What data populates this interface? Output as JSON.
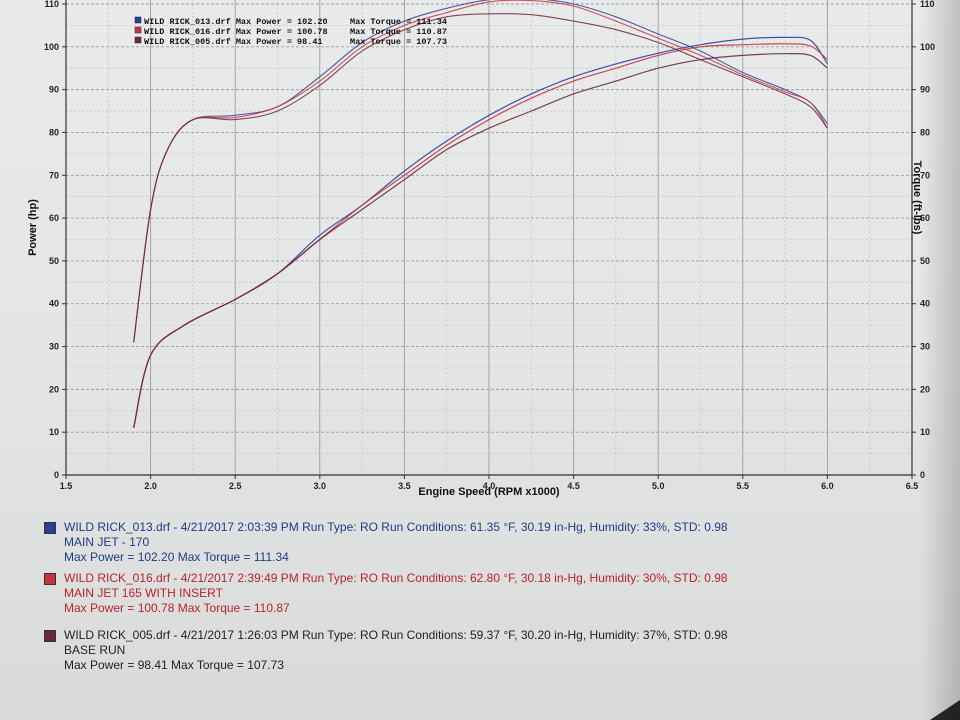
{
  "chart_data": {
    "type": "line",
    "xlabel": "Engine Speed (RPM x1000)",
    "ylabel": "Power (hp)",
    "y2label": "Torque (ft-lbs)",
    "xlim": [
      1.5,
      6.5
    ],
    "ylim": [
      0,
      110
    ],
    "y2lim": [
      0,
      110
    ],
    "x_ticks": [
      "1.5",
      "2.0",
      "2.5",
      "3.0",
      "3.5",
      "4.0",
      "4.5",
      "5.0",
      "5.5",
      "6.0",
      "6.5"
    ],
    "y_ticks": [
      "0",
      "10",
      "20",
      "30",
      "40",
      "50",
      "60",
      "70",
      "80",
      "90",
      "100",
      "110"
    ],
    "y2_ticks": [
      "0",
      "10",
      "20",
      "30",
      "40",
      "50",
      "60",
      "70",
      "80",
      "90",
      "100",
      "110"
    ],
    "grid": true,
    "legend_position": "top-left",
    "legend": [
      {
        "file": "WILD RICK_013.drf",
        "max_power_label": "Max Power =",
        "max_power": "102.20",
        "max_torque_label": "Max Torque =",
        "max_torque": "111.34",
        "color": "#2a3f9a"
      },
      {
        "file": "WILD RICK_016.drf",
        "max_power_label": "Max Power =",
        "max_power": "100.78",
        "max_torque_label": "Max Torque =",
        "max_torque": "110.87",
        "color": "#c8343c"
      },
      {
        "file": "WILD RICK_005.drf",
        "max_power_label": "Max Power =",
        "max_power": "98.41",
        "max_torque_label": "Max Torque =",
        "max_torque": "107.73",
        "color": "#6b2a38"
      }
    ],
    "series": [
      {
        "name": "WILD RICK_013.drf",
        "color": "#2a3f9a",
        "power": {
          "x": [
            1.9,
            2.0,
            2.2,
            2.5,
            2.75,
            3.0,
            3.25,
            3.5,
            3.75,
            4.0,
            4.25,
            4.5,
            4.75,
            5.0,
            5.25,
            5.5,
            5.75,
            5.9,
            6.0
          ],
          "y": [
            11,
            28,
            35,
            41,
            47,
            56,
            63,
            71,
            78,
            84,
            89,
            93,
            96,
            98.5,
            100.5,
            101.8,
            102.2,
            101.5,
            96
          ]
        },
        "torque": {
          "x": [
            1.9,
            2.0,
            2.1,
            2.25,
            2.5,
            2.75,
            3.0,
            3.25,
            3.5,
            3.75,
            4.0,
            4.25,
            4.5,
            4.75,
            5.0,
            5.25,
            5.5,
            5.75,
            5.9,
            6.0
          ],
          "y": [
            31,
            62,
            76,
            83,
            84,
            86,
            93,
            101,
            106,
            109,
            111,
            111.3,
            110,
            107,
            103,
            99,
            94,
            90,
            87,
            82
          ]
        }
      },
      {
        "name": "WILD RICK_016.drf",
        "color": "#c8343c",
        "power": {
          "x": [
            1.9,
            2.0,
            2.2,
            2.5,
            2.75,
            3.0,
            3.25,
            3.5,
            3.75,
            4.0,
            4.25,
            4.5,
            4.75,
            5.0,
            5.25,
            5.5,
            5.75,
            5.9,
            6.0
          ],
          "y": [
            11,
            28,
            35,
            41,
            47,
            55,
            63,
            70,
            77,
            83,
            88,
            92,
            95,
            98,
            100,
            100.5,
            100.7,
            100.2,
            97
          ]
        },
        "torque": {
          "x": [
            1.9,
            2.0,
            2.1,
            2.25,
            2.5,
            2.75,
            3.0,
            3.25,
            3.5,
            3.75,
            4.0,
            4.25,
            4.5,
            4.75,
            5.0,
            5.25,
            5.5,
            5.75,
            5.9,
            6.0
          ],
          "y": [
            31,
            62,
            76,
            83,
            83.5,
            86,
            92,
            100,
            105,
            108,
            110.5,
            110.8,
            109.5,
            106,
            102,
            98,
            93.5,
            89.5,
            87,
            81
          ]
        }
      },
      {
        "name": "WILD RICK_005.drf",
        "color": "#6b2a38",
        "power": {
          "x": [
            1.9,
            2.0,
            2.2,
            2.5,
            2.75,
            3.0,
            3.25,
            3.5,
            3.75,
            4.0,
            4.25,
            4.5,
            4.75,
            5.0,
            5.25,
            5.5,
            5.75,
            5.9,
            6.0
          ],
          "y": [
            11,
            28,
            35,
            41,
            47,
            55,
            62,
            69,
            76,
            81,
            85,
            89,
            92,
            95,
            97,
            98,
            98.4,
            98,
            95
          ]
        },
        "torque": {
          "x": [
            1.9,
            2.0,
            2.1,
            2.25,
            2.5,
            2.75,
            3.0,
            3.25,
            3.5,
            3.75,
            4.0,
            4.25,
            4.5,
            4.75,
            5.0,
            5.25,
            5.5,
            5.75,
            5.9,
            6.0
          ],
          "y": [
            31,
            62,
            76,
            83,
            83,
            85,
            91,
            99,
            104,
            107,
            107.7,
            107.5,
            106,
            104,
            101,
            97,
            93,
            89,
            86,
            81
          ]
        }
      }
    ]
  },
  "runs": [
    {
      "color": "#213a86",
      "header": "WILD RICK_013.drf - 4/21/2017 2:03:39 PM  Run Type: RO  Run Conditions: 61.35 °F, 30.19 in-Hg,  Humidity:  33%, STD: 0.98",
      "note": "MAIN JET  - 170",
      "summary": "Max Power = 102.20  Max Torque = 111.34"
    },
    {
      "color": "#b8232c",
      "header": "WILD RICK_016.drf - 4/21/2017 2:39:49 PM  Run Type: RO  Run Conditions: 62.80 °F, 30.18 in-Hg,  Humidity:  30%, STD: 0.98",
      "note": "MAIN JET 165 WITH INSERT",
      "summary": "Max Power = 100.78  Max Torque = 110.87"
    },
    {
      "color": "#222222",
      "header": "WILD RICK_005.drf - 4/21/2017 1:26:03 PM  Run Type: RO  Run Conditions: 59.37 °F, 30.20 in-Hg,  Humidity:  37%, STD: 0.98",
      "note": "BASE RUN",
      "summary": "Max Power = 98.41  Max Torque = 107.73"
    }
  ]
}
